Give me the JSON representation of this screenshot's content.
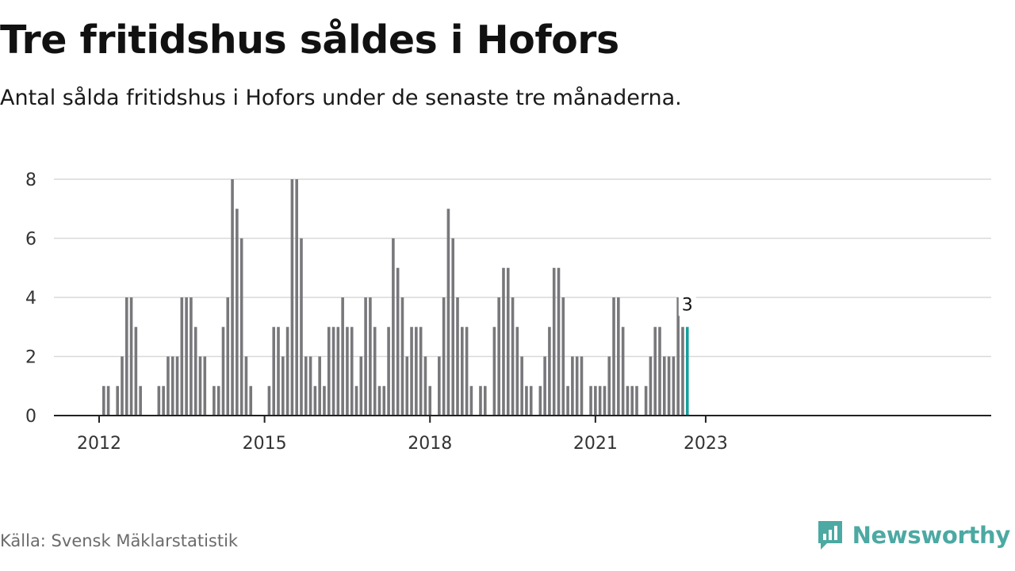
{
  "header": {
    "title": "Tre fritidshus såldes i Hofors",
    "subtitle": "Antal sålda fritidshus i Hofors under de senaste tre månaderna."
  },
  "footer": {
    "source": "Källa: Svensk Mäklarstatistik",
    "brand": "Newsworthy"
  },
  "colors": {
    "bar": "#78787c",
    "highlight": "#14a09c",
    "grid": "#d9d9d9",
    "axis": "#222222",
    "brand": "#4ca9a3"
  },
  "icons": {
    "logo": "newsworthy-chart-icon"
  },
  "chart_data": {
    "type": "bar",
    "x_unit": "month",
    "start": "2012-01",
    "values": [
      0,
      1,
      1,
      0,
      1,
      2,
      4,
      4,
      3,
      1,
      0,
      0,
      0,
      1,
      1,
      2,
      2,
      2,
      4,
      4,
      4,
      3,
      2,
      2,
      0,
      1,
      1,
      3,
      4,
      8,
      7,
      6,
      2,
      1,
      0,
      0,
      0,
      1,
      3,
      3,
      2,
      3,
      8,
      8,
      6,
      2,
      2,
      1,
      2,
      1,
      3,
      3,
      3,
      4,
      3,
      3,
      1,
      2,
      4,
      4,
      3,
      1,
      1,
      3,
      6,
      5,
      4,
      2,
      3,
      3,
      3,
      2,
      1,
      0,
      2,
      4,
      7,
      6,
      4,
      3,
      3,
      1,
      0,
      1,
      1,
      0,
      3,
      4,
      5,
      5,
      4,
      3,
      2,
      1,
      1,
      0,
      1,
      2,
      3,
      5,
      5,
      4,
      1,
      2,
      2,
      2,
      0,
      1,
      1,
      1,
      1,
      2,
      4,
      4,
      3,
      1,
      1,
      1,
      0,
      1,
      2,
      3,
      3,
      2,
      2,
      2,
      4,
      3,
      3
    ],
    "x_ticks": [
      "2012",
      "2015",
      "2018",
      "2021",
      "2023"
    ],
    "x_tick_dates": [
      "2012-01",
      "2015-01",
      "2018-01",
      "2021-01",
      "2023-01"
    ],
    "y_ticks": [
      0,
      2,
      4,
      6,
      8
    ],
    "ylim": [
      0,
      8
    ],
    "highlight_label": "3",
    "grid": true
  }
}
